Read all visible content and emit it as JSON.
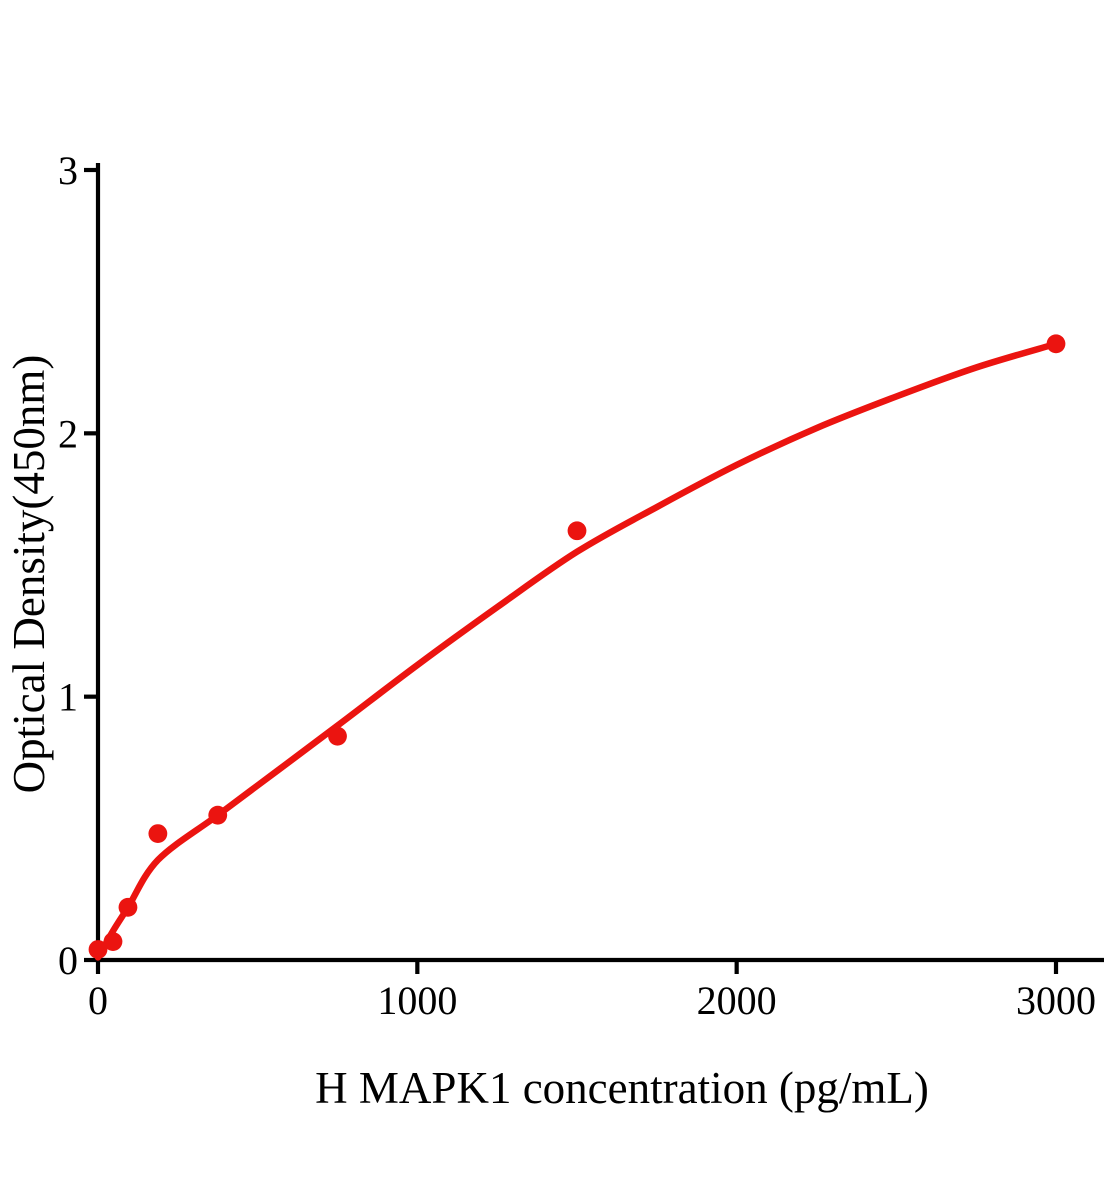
{
  "chart_data": {
    "type": "scatter",
    "title": "",
    "xlabel": "H MAPK1 concentration (pg/mL)",
    "ylabel": "Optical Density(450nm)",
    "xlim": [
      0,
      3150
    ],
    "ylim": [
      0,
      3
    ],
    "x_ticks": [
      {
        "value": 0,
        "label": "0"
      },
      {
        "value": 1000,
        "label": "1000"
      },
      {
        "value": 2000,
        "label": "2000"
      },
      {
        "value": 3000,
        "label": "3000"
      }
    ],
    "y_ticks": [
      {
        "value": 0,
        "label": "0"
      },
      {
        "value": 1,
        "label": "1"
      },
      {
        "value": 2,
        "label": "2"
      },
      {
        "value": 3,
        "label": "3"
      }
    ],
    "grid": false,
    "legend_position": "none",
    "colors": {
      "marker": "#eb1410",
      "fit_line": "#eb1410",
      "axis": "#000000"
    },
    "points": [
      {
        "x": 0,
        "y": 0.04
      },
      {
        "x": 46.9,
        "y": 0.07
      },
      {
        "x": 93.8,
        "y": 0.2
      },
      {
        "x": 187.5,
        "y": 0.48
      },
      {
        "x": 375,
        "y": 0.55
      },
      {
        "x": 750,
        "y": 0.85
      },
      {
        "x": 1500,
        "y": 1.63
      },
      {
        "x": 3000,
        "y": 2.34
      }
    ],
    "fit_curve": [
      [
        0,
        0.01
      ],
      [
        47,
        0.11
      ],
      [
        94,
        0.2
      ],
      [
        188,
        0.38
      ],
      [
        375,
        0.55
      ],
      [
        563,
        0.72
      ],
      [
        750,
        0.89
      ],
      [
        1000,
        1.12
      ],
      [
        1250,
        1.34
      ],
      [
        1500,
        1.55
      ],
      [
        1750,
        1.72
      ],
      [
        2000,
        1.88
      ],
      [
        2250,
        2.02
      ],
      [
        2500,
        2.14
      ],
      [
        2750,
        2.25
      ],
      [
        3000,
        2.34
      ]
    ]
  }
}
